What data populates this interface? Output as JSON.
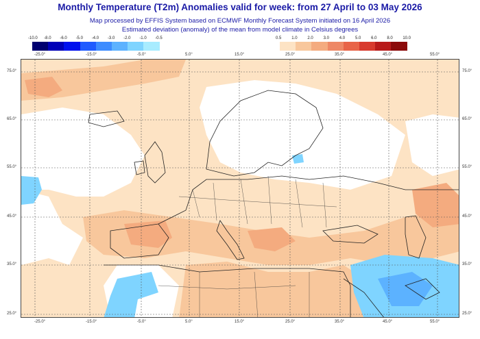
{
  "header": {
    "title": "Monthly Temperature (T2m) Anomalies valid for week: from 27 April to 03 May 2026",
    "subtitle1": "Map processed by EFFIS System based on ECMWF Monthly Forecast System initiated on 16 April 2026",
    "subtitle2": "Estimated deviation (anomaly) of the mean from model climate in Celsius degrees"
  },
  "legend": {
    "negative": {
      "labels": [
        "-10.0",
        "-8.0",
        "-6.0",
        "-5.0",
        "-4.0",
        "-3.0",
        "-2.0",
        "-1.0",
        "-0.5"
      ],
      "colors": [
        "#000070",
        "#0000b8",
        "#0010ee",
        "#1f5bff",
        "#3d8cff",
        "#5cb2ff",
        "#7fd4ff",
        "#a8ecff"
      ]
    },
    "positive": {
      "labels": [
        "0.5",
        "1.0",
        "2.0",
        "3.0",
        "4.0",
        "5.0",
        "6.0",
        "8.0",
        "10.0"
      ],
      "colors": [
        "#fde3c4",
        "#f8c79c",
        "#f4ab7f",
        "#ee8866",
        "#e86448",
        "#d83a2e",
        "#b81a1a",
        "#8c0a0a"
      ]
    }
  },
  "map": {
    "lon_labels": [
      "-25.0°",
      "-15.0°",
      "-5.0°",
      "5.0°",
      "15.0°",
      "25.0°",
      "35.0°",
      "45.0°",
      "55.0°"
    ],
    "lat_labels": [
      "75.0°",
      "65.0°",
      "55.0°",
      "45.0°",
      "35.0°",
      "25.0°"
    ]
  }
}
